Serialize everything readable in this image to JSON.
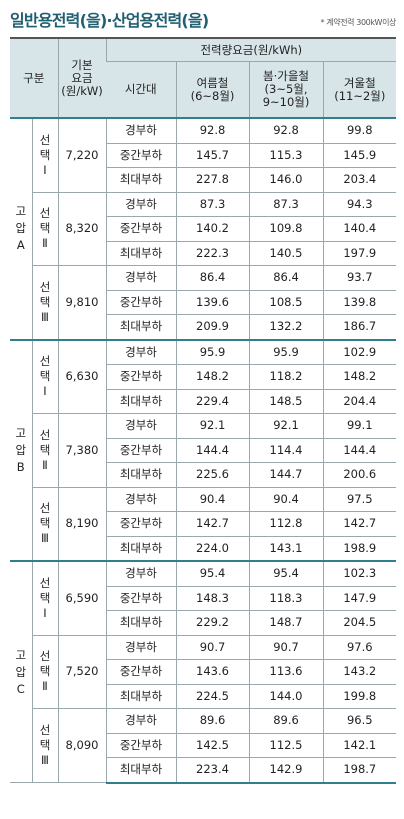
{
  "title": "일반용전력(을)·산업용전력(을)",
  "note": "* 계약전력 300kW이상",
  "header": {
    "category": "구분",
    "base_fee": "기본\n요금\n(원/kW)",
    "energy_fee": "전력량요금(원/kWh)",
    "time_slot": "시간대",
    "summer": "여름철\n(6~8월)",
    "spring_autumn": "봄·가을철\n(3~5월,\n9~10월)",
    "winter": "겨울철\n(11~2월)"
  },
  "groups": [
    {
      "grade": "고압A",
      "options": [
        {
          "label": "선택Ⅰ",
          "base": "7,220",
          "rows": [
            {
              "slot": "경부하",
              "summer": "92.8",
              "spring": "92.8",
              "winter": "99.8"
            },
            {
              "slot": "중간부하",
              "summer": "145.7",
              "spring": "115.3",
              "winter": "145.9"
            },
            {
              "slot": "최대부하",
              "summer": "227.8",
              "spring": "146.0",
              "winter": "203.4"
            }
          ]
        },
        {
          "label": "선택Ⅱ",
          "base": "8,320",
          "rows": [
            {
              "slot": "경부하",
              "summer": "87.3",
              "spring": "87.3",
              "winter": "94.3"
            },
            {
              "slot": "중간부하",
              "summer": "140.2",
              "spring": "109.8",
              "winter": "140.4"
            },
            {
              "slot": "최대부하",
              "summer": "222.3",
              "spring": "140.5",
              "winter": "197.9"
            }
          ]
        },
        {
          "label": "선택Ⅲ",
          "base": "9,810",
          "rows": [
            {
              "slot": "경부하",
              "summer": "86.4",
              "spring": "86.4",
              "winter": "93.7"
            },
            {
              "slot": "중간부하",
              "summer": "139.6",
              "spring": "108.5",
              "winter": "139.8"
            },
            {
              "slot": "최대부하",
              "summer": "209.9",
              "spring": "132.2",
              "winter": "186.7"
            }
          ]
        }
      ]
    },
    {
      "grade": "고압B",
      "options": [
        {
          "label": "선택Ⅰ",
          "base": "6,630",
          "rows": [
            {
              "slot": "경부하",
              "summer": "95.9",
              "spring": "95.9",
              "winter": "102.9"
            },
            {
              "slot": "중간부하",
              "summer": "148.2",
              "spring": "118.2",
              "winter": "148.2"
            },
            {
              "slot": "최대부하",
              "summer": "229.4",
              "spring": "148.5",
              "winter": "204.4"
            }
          ]
        },
        {
          "label": "선택Ⅱ",
          "base": "7,380",
          "rows": [
            {
              "slot": "경부하",
              "summer": "92.1",
              "spring": "92.1",
              "winter": "99.1"
            },
            {
              "slot": "중간부하",
              "summer": "144.4",
              "spring": "114.4",
              "winter": "144.4"
            },
            {
              "slot": "최대부하",
              "summer": "225.6",
              "spring": "144.7",
              "winter": "200.6"
            }
          ]
        },
        {
          "label": "선택Ⅲ",
          "base": "8,190",
          "rows": [
            {
              "slot": "경부하",
              "summer": "90.4",
              "spring": "90.4",
              "winter": "97.5"
            },
            {
              "slot": "중간부하",
              "summer": "142.7",
              "spring": "112.8",
              "winter": "142.7"
            },
            {
              "slot": "최대부하",
              "summer": "224.0",
              "spring": "143.1",
              "winter": "198.9"
            }
          ]
        }
      ]
    },
    {
      "grade": "고압C",
      "options": [
        {
          "label": "선택Ⅰ",
          "base": "6,590",
          "rows": [
            {
              "slot": "경부하",
              "summer": "95.4",
              "spring": "95.4",
              "winter": "102.3"
            },
            {
              "slot": "중간부하",
              "summer": "148.3",
              "spring": "118.3",
              "winter": "147.9"
            },
            {
              "slot": "최대부하",
              "summer": "229.2",
              "spring": "148.7",
              "winter": "204.5"
            }
          ]
        },
        {
          "label": "선택Ⅱ",
          "base": "7,520",
          "rows": [
            {
              "slot": "경부하",
              "summer": "90.7",
              "spring": "90.7",
              "winter": "97.6"
            },
            {
              "slot": "중간부하",
              "summer": "143.6",
              "spring": "113.6",
              "winter": "143.2"
            },
            {
              "slot": "최대부하",
              "summer": "224.5",
              "spring": "144.0",
              "winter": "199.8"
            }
          ]
        },
        {
          "label": "선택Ⅲ",
          "base": "8,090",
          "rows": [
            {
              "slot": "경부하",
              "summer": "89.6",
              "spring": "89.6",
              "winter": "96.5"
            },
            {
              "slot": "중간부하",
              "summer": "142.5",
              "spring": "112.5",
              "winter": "142.1"
            },
            {
              "slot": "최대부하",
              "summer": "223.4",
              "spring": "142.9",
              "winter": "198.7"
            }
          ]
        }
      ]
    }
  ]
}
